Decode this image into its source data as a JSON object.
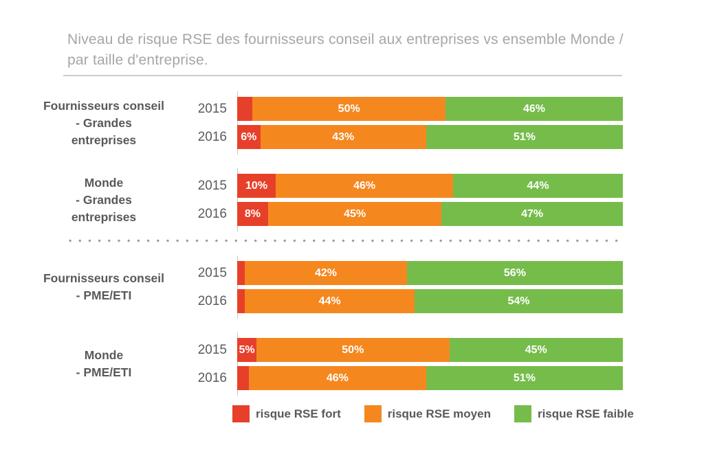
{
  "title": "Niveau de risque RSE des fournisseurs conseil aux entreprises vs ensemble Monde / par taille d'entreprise.",
  "colors": {
    "fort": "#e7402a",
    "moyen": "#f5871f",
    "faible": "#76bc4b",
    "title_text": "#a4a6a9",
    "label_text": "#58595b",
    "axis_line": "#c5c6c8"
  },
  "legend": [
    {
      "label": "risque RSE fort",
      "color_key": "fort"
    },
    {
      "label": "risque RSE moyen",
      "color_key": "moyen"
    },
    {
      "label": "risque RSE faible",
      "color_key": "faible"
    }
  ],
  "chart_data": {
    "type": "bar",
    "orientation": "horizontal",
    "stacked": true,
    "unit": "%",
    "xlim": [
      0,
      100
    ],
    "series_names": [
      "risque RSE fort",
      "risque RSE moyen",
      "risque RSE faible"
    ],
    "groups": [
      {
        "label": "Fournisseurs conseil - Grandes entreprises",
        "label_lines": [
          "Fournisseurs conseil",
          "- Grandes",
          "entreprises"
        ],
        "divider_after": false,
        "rows": [
          {
            "year": "2015",
            "values": [
              4,
              50,
              46
            ]
          },
          {
            "year": "2016",
            "values": [
              6,
              43,
              51
            ]
          }
        ]
      },
      {
        "label": "Monde - Grandes entreprises",
        "label_lines": [
          "Monde",
          "- Grandes",
          "entreprises"
        ],
        "divider_after": true,
        "rows": [
          {
            "year": "2015",
            "values": [
              10,
              46,
              44
            ]
          },
          {
            "year": "2016",
            "values": [
              8,
              45,
              47
            ]
          }
        ]
      },
      {
        "label": "Fournisseurs conseil - PME/ETI",
        "label_lines": [
          "Fournisseurs conseil",
          "- PME/ETI"
        ],
        "divider_after": false,
        "rows": [
          {
            "year": "2015",
            "values": [
              2,
              42,
              56
            ]
          },
          {
            "year": "2016",
            "values": [
              2,
              44,
              54
            ]
          }
        ]
      },
      {
        "label": "Monde - PME/ETI",
        "label_lines": [
          "Monde",
          "- PME/ETI"
        ],
        "divider_after": false,
        "rows": [
          {
            "year": "2015",
            "values": [
              5,
              50,
              45
            ]
          },
          {
            "year": "2016",
            "values": [
              3,
              46,
              51
            ]
          }
        ]
      }
    ]
  }
}
